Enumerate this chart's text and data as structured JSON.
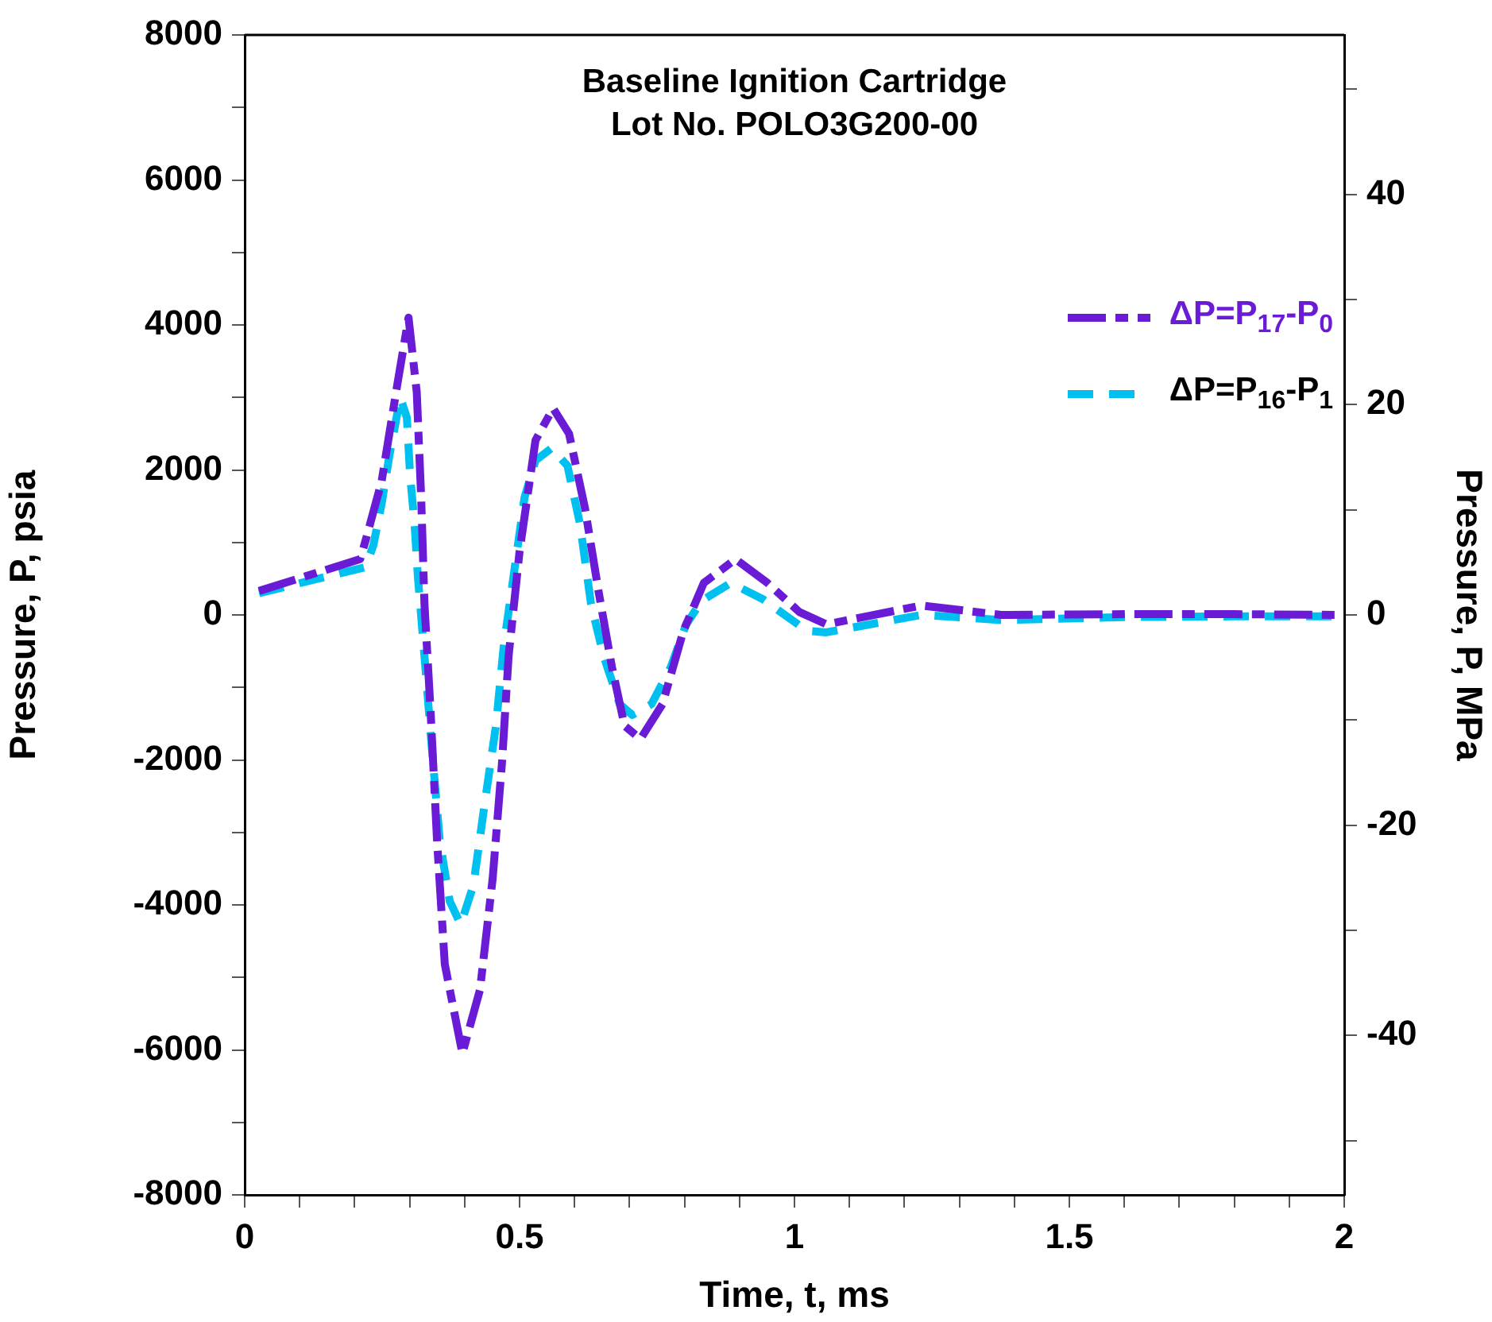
{
  "chart_data": {
    "type": "line",
    "title": "Baseline Ignition Cartridge\nLot No. POLO3G200-00",
    "xlabel": "Time, t, ms",
    "ylabel": "Pressure, P, psia",
    "y2label": "Pressure, P, MPa",
    "xlim": [
      0,
      2
    ],
    "xticks": [
      0,
      {
        "value": 0.1,
        "label": null
      },
      {
        "value": 0.2,
        "label": null
      },
      {
        "value": 0.3,
        "label": null
      },
      {
        "value": 0.4,
        "label": null
      },
      0.5,
      {
        "value": 0.6,
        "label": null
      },
      {
        "value": 0.7,
        "label": null
      },
      {
        "value": 0.8,
        "label": null
      },
      {
        "value": 0.9,
        "label": null
      },
      1,
      {
        "value": 1.1,
        "label": null
      },
      {
        "value": 1.2,
        "label": null
      },
      {
        "value": 1.3,
        "label": null
      },
      {
        "value": 1.4,
        "label": null
      },
      1.5,
      {
        "value": 1.6,
        "label": null
      },
      {
        "value": 1.7,
        "label": null
      },
      {
        "value": 1.8,
        "label": null
      },
      {
        "value": 1.9,
        "label": null
      },
      2
    ],
    "ylim": [
      -8000,
      8000
    ],
    "yticks": [
      -8000,
      {
        "value": -7000,
        "label": null
      },
      -6000,
      {
        "value": -5000,
        "label": null
      },
      -4000,
      {
        "value": -3000,
        "label": null
      },
      -2000,
      {
        "value": -1000,
        "label": null
      },
      0,
      {
        "value": 1000,
        "label": null
      },
      2000,
      {
        "value": 3000,
        "label": null
      },
      4000,
      {
        "value": 5000,
        "label": null
      },
      6000,
      {
        "value": 7000,
        "label": null
      },
      8000
    ],
    "y2lim": [
      -55.16,
      55.16
    ],
    "y2ticks": [
      {
        "value": -50,
        "label": null
      },
      -40,
      {
        "value": -30,
        "label": null
      },
      -20,
      {
        "value": -10,
        "label": null
      },
      0,
      {
        "value": 10,
        "label": null
      },
      20,
      {
        "value": 30,
        "label": null
      },
      40,
      {
        "value": 50,
        "label": null
      }
    ],
    "grid": false,
    "legend": "top right",
    "marker": "none",
    "line_style": "dashed",
    "series": [
      {
        "name": "ΔP=P$_{17}$-P$_{0}$",
        "color": "#6a1bd6",
        "x": [
          0.026,
          0.21,
          0.22,
          0.249,
          0.277,
          0.298,
          0.313,
          0.321,
          0.327,
          0.338,
          0.35,
          0.364,
          0.396,
          0.428,
          0.451,
          0.468,
          0.48,
          0.5,
          0.529,
          0.561,
          0.59,
          0.619,
          0.644,
          0.668,
          0.691,
          0.72,
          0.76,
          0.798,
          0.835,
          0.893,
          0.951,
          1.009,
          1.058,
          1.231,
          1.376,
          1.6,
          1.8,
          2
        ],
        "values": [
          330,
          770,
          1030,
          1840,
          3150,
          4100,
          3070,
          1620,
          150,
          -1310,
          -3130,
          -4820,
          -6050,
          -5170,
          -3640,
          -2040,
          -570,
          880,
          2410,
          2850,
          2500,
          1470,
          310,
          -720,
          -1530,
          -1710,
          -1230,
          -220,
          440,
          770,
          440,
          40,
          -130,
          130,
          0,
          10,
          10,
          0
        ]
      },
      {
        "name": "ΔP=P$_{16}$-P$_{1}$",
        "color": "#00c0f0",
        "x": [
          0.026,
          0.22,
          0.234,
          0.249,
          0.263,
          0.283,
          0.295,
          0.301,
          0.309,
          0.315,
          0.327,
          0.341,
          0.355,
          0.373,
          0.393,
          0.416,
          0.436,
          0.457,
          0.471,
          0.486,
          0.509,
          0.529,
          0.558,
          0.587,
          0.61,
          0.63,
          0.653,
          0.682,
          0.705,
          0.74,
          0.775,
          0.803,
          0.832,
          0.884,
          0.942,
          1.023,
          1.058,
          1.231,
          1.376,
          1.6,
          1.8,
          2
        ],
        "values": [
          300,
          660,
          960,
          1530,
          2190,
          3000,
          2720,
          1910,
          1250,
          530,
          -570,
          -1890,
          -3130,
          -3950,
          -4270,
          -3730,
          -2630,
          -1530,
          -440,
          370,
          1620,
          2130,
          2300,
          2060,
          1250,
          150,
          -570,
          -1230,
          -1380,
          -1230,
          -720,
          -130,
          200,
          440,
          220,
          -220,
          -240,
          0,
          -70,
          -30,
          -20,
          -20
        ]
      }
    ]
  }
}
